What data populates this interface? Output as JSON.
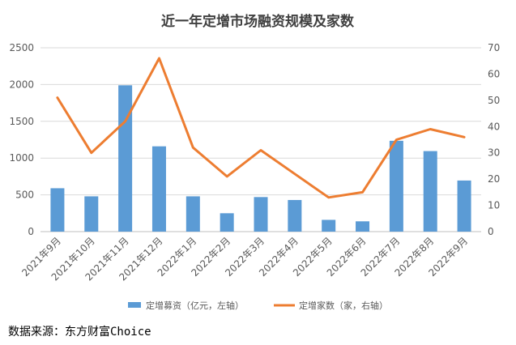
{
  "source": "数据来源：东方财富Choice",
  "chart_data": {
    "type": "bar",
    "title": "近一年定增市场融资规模及家数",
    "categories": [
      "2021年9月",
      "2021年10月",
      "2021年11月",
      "2021年12月",
      "2022年1月",
      "2022年2月",
      "2022年3月",
      "2022年4月",
      "2022年5月",
      "2022年6月",
      "2022年7月",
      "2022年8月",
      "2022年9月"
    ],
    "y_left": {
      "ylim": [
        0,
        2500
      ],
      "ticks": [
        "0",
        "500",
        "1000",
        "1500",
        "2000",
        "2500"
      ]
    },
    "y_right": {
      "ylim": [
        0,
        70
      ],
      "ticks": [
        "0",
        "10",
        "20",
        "30",
        "40",
        "50",
        "60",
        "70"
      ]
    },
    "series": [
      {
        "name": "定增募资（亿元，左轴）",
        "type": "bar",
        "axis": "left",
        "color": "#5b9bd5",
        "values": [
          590,
          480,
          1990,
          1160,
          480,
          250,
          470,
          430,
          160,
          140,
          1235,
          1095,
          695
        ]
      },
      {
        "name": "定增家数（家，右轴）",
        "type": "line",
        "axis": "right",
        "color": "#ed7d31",
        "values": [
          51,
          30,
          42,
          66,
          32,
          21,
          31,
          22,
          13,
          15,
          35,
          39,
          36
        ]
      }
    ],
    "grid": true,
    "legend": "bottom"
  }
}
